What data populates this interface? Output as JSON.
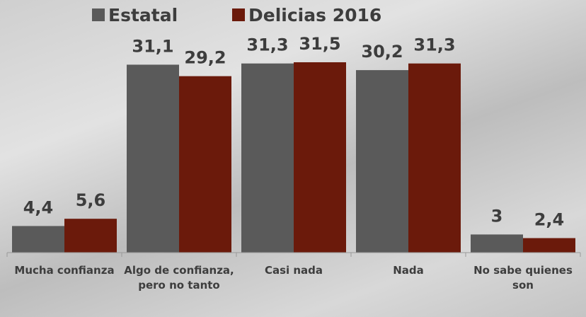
{
  "chart_data": {
    "type": "bar",
    "categories": [
      "Mucha confianza",
      "Algo de confianza, pero no tanto",
      "Casi nada",
      "Nada",
      "No sabe quienes son"
    ],
    "series": [
      {
        "name": "Estatal",
        "color": "#5a5a5a",
        "values": [
          4.4,
          31.1,
          31.3,
          30.2,
          3
        ],
        "value_labels": [
          "4,4",
          "31,1",
          "31,3",
          "30,2",
          "3"
        ]
      },
      {
        "name": "Delicias 2016",
        "color": "#6b1a0b",
        "values": [
          5.6,
          29.2,
          31.5,
          31.3,
          2.4
        ],
        "value_labels": [
          "5,6",
          "29,2",
          "31,5",
          "31,3",
          "2,4"
        ]
      }
    ]
  }
}
